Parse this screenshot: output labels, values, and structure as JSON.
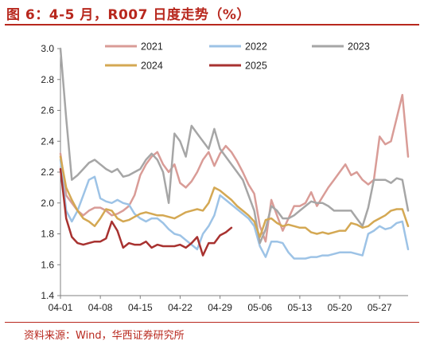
{
  "title": "图 6：4-5 月，R007 日度走势（%）",
  "source": "资料来源：Wind，华西证券研究所",
  "chart_data": {
    "type": "line",
    "x_tick_labels": [
      "04-01",
      "04-08",
      "04-15",
      "04-22",
      "04-29",
      "05-06",
      "05-13",
      "05-20",
      "05-27"
    ],
    "x_tick_positions": [
      1,
      8,
      15,
      22,
      29,
      36,
      43,
      50,
      57
    ],
    "xlim": [
      1,
      62
    ],
    "ylim": [
      1.4,
      3.0
    ],
    "y_ticks": [
      1.4,
      1.6,
      1.8,
      2.0,
      2.2,
      2.4,
      2.6,
      2.8,
      3.0
    ],
    "y_tick_labels": [
      "1.4",
      "1.6",
      "1.8",
      "2.0",
      "2.2",
      "2.4",
      "2.6",
      "2.8",
      "3.0"
    ],
    "legend_position": "top",
    "series": [
      {
        "name": "2021",
        "color": "#d99c97",
        "width": 2.5,
        "points": [
          [
            1,
            2.32
          ],
          [
            2,
            2.05
          ],
          [
            3,
            2.0
          ],
          [
            4,
            1.95
          ],
          [
            5,
            1.92
          ],
          [
            6,
            1.95
          ],
          [
            7,
            1.97
          ],
          [
            8,
            1.97
          ],
          [
            9,
            1.95
          ],
          [
            10,
            1.92
          ],
          [
            11,
            1.93
          ],
          [
            12,
            1.95
          ],
          [
            13,
            1.98
          ],
          [
            14,
            2.05
          ],
          [
            15,
            2.18
          ],
          [
            16,
            2.25
          ],
          [
            17,
            2.3
          ],
          [
            18,
            2.33
          ],
          [
            19,
            2.25
          ],
          [
            20,
            2.2
          ],
          [
            21,
            2.25
          ],
          [
            22,
            2.13
          ],
          [
            23,
            2.1
          ],
          [
            24,
            2.14
          ],
          [
            25,
            2.2
          ],
          [
            26,
            2.28
          ],
          [
            27,
            2.33
          ],
          [
            28,
            2.24
          ],
          [
            29,
            2.32
          ],
          [
            30,
            2.37
          ],
          [
            31,
            2.33
          ],
          [
            32,
            2.27
          ],
          [
            33,
            2.2
          ],
          [
            34,
            2.12
          ],
          [
            35,
            2.06
          ],
          [
            36,
            1.85
          ],
          [
            37,
            1.75
          ],
          [
            38,
            2.02
          ],
          [
            39,
            1.92
          ],
          [
            40,
            1.82
          ],
          [
            41,
            1.9
          ],
          [
            42,
            1.98
          ],
          [
            43,
            1.98
          ],
          [
            44,
            2.0
          ],
          [
            45,
            2.07
          ],
          [
            46,
            1.98
          ],
          [
            47,
            2.04
          ],
          [
            48,
            2.1
          ],
          [
            49,
            2.15
          ],
          [
            50,
            2.2
          ],
          [
            51,
            2.25
          ],
          [
            52,
            2.18
          ],
          [
            53,
            2.2
          ],
          [
            54,
            2.15
          ],
          [
            55,
            2.12
          ],
          [
            56,
            2.15
          ],
          [
            57,
            2.43
          ],
          [
            58,
            2.38
          ],
          [
            59,
            2.4
          ],
          [
            60,
            2.55
          ],
          [
            61,
            2.7
          ],
          [
            62,
            2.3
          ]
        ]
      },
      {
        "name": "2022",
        "color": "#9dc3e6",
        "width": 2.5,
        "points": [
          [
            1,
            2.28
          ],
          [
            2,
            1.95
          ],
          [
            3,
            1.88
          ],
          [
            4,
            1.95
          ],
          [
            5,
            2.05
          ],
          [
            6,
            2.15
          ],
          [
            7,
            2.17
          ],
          [
            8,
            2.03
          ],
          [
            9,
            2.01
          ],
          [
            10,
            2.0
          ],
          [
            11,
            2.02
          ],
          [
            12,
            2.0
          ],
          [
            13,
            1.99
          ],
          [
            14,
            1.93
          ],
          [
            15,
            1.9
          ],
          [
            16,
            1.88
          ],
          [
            17,
            1.9
          ],
          [
            18,
            1.9
          ],
          [
            19,
            1.87
          ],
          [
            20,
            1.83
          ],
          [
            21,
            1.8
          ],
          [
            22,
            1.79
          ],
          [
            23,
            1.76
          ],
          [
            24,
            1.73
          ],
          [
            25,
            1.7
          ],
          [
            26,
            1.8
          ],
          [
            27,
            1.85
          ],
          [
            28,
            1.92
          ],
          [
            29,
            2.05
          ],
          [
            30,
            2.02
          ],
          [
            31,
            1.99
          ],
          [
            32,
            1.96
          ],
          [
            33,
            1.93
          ],
          [
            34,
            1.9
          ],
          [
            35,
            1.85
          ],
          [
            36,
            1.72
          ],
          [
            37,
            1.65
          ],
          [
            38,
            1.75
          ],
          [
            39,
            1.75
          ],
          [
            40,
            1.74
          ],
          [
            41,
            1.68
          ],
          [
            42,
            1.64
          ],
          [
            43,
            1.64
          ],
          [
            44,
            1.64
          ],
          [
            45,
            1.65
          ],
          [
            46,
            1.65
          ],
          [
            47,
            1.66
          ],
          [
            48,
            1.66
          ],
          [
            49,
            1.67
          ],
          [
            50,
            1.68
          ],
          [
            51,
            1.68
          ],
          [
            52,
            1.68
          ],
          [
            53,
            1.67
          ],
          [
            54,
            1.66
          ],
          [
            55,
            1.8
          ],
          [
            56,
            1.82
          ],
          [
            57,
            1.85
          ],
          [
            58,
            1.83
          ],
          [
            59,
            1.84
          ],
          [
            60,
            1.87
          ],
          [
            61,
            1.88
          ],
          [
            62,
            1.7
          ]
        ]
      },
      {
        "name": "2023",
        "color": "#a6a6a6",
        "width": 2.5,
        "points": [
          [
            1,
            3.0
          ],
          [
            2,
            2.55
          ],
          [
            3,
            2.15
          ],
          [
            4,
            2.18
          ],
          [
            5,
            2.22
          ],
          [
            6,
            2.26
          ],
          [
            7,
            2.28
          ],
          [
            8,
            2.25
          ],
          [
            9,
            2.22
          ],
          [
            10,
            2.2
          ],
          [
            11,
            2.22
          ],
          [
            12,
            2.17
          ],
          [
            13,
            2.18
          ],
          [
            14,
            2.2
          ],
          [
            15,
            2.22
          ],
          [
            16,
            2.28
          ],
          [
            17,
            2.32
          ],
          [
            18,
            2.28
          ],
          [
            19,
            2.2
          ],
          [
            20,
            2.0
          ],
          [
            21,
            2.45
          ],
          [
            22,
            2.4
          ],
          [
            23,
            2.3
          ],
          [
            24,
            2.5
          ],
          [
            25,
            2.45
          ],
          [
            26,
            2.4
          ],
          [
            27,
            2.35
          ],
          [
            28,
            2.48
          ],
          [
            29,
            2.35
          ],
          [
            30,
            2.3
          ],
          [
            31,
            2.25
          ],
          [
            32,
            2.2
          ],
          [
            33,
            2.15
          ],
          [
            34,
            2.05
          ],
          [
            35,
            1.95
          ],
          [
            36,
            1.74
          ],
          [
            37,
            1.83
          ],
          [
            38,
            1.98
          ],
          [
            39,
            1.95
          ],
          [
            40,
            1.9
          ],
          [
            41,
            1.9
          ],
          [
            42,
            1.92
          ],
          [
            43,
            1.95
          ],
          [
            44,
            1.98
          ],
          [
            45,
            2.01
          ],
          [
            46,
            2.0
          ],
          [
            47,
            2.0
          ],
          [
            48,
            1.98
          ],
          [
            49,
            1.95
          ],
          [
            50,
            1.95
          ],
          [
            51,
            1.95
          ],
          [
            52,
            1.95
          ],
          [
            53,
            1.9
          ],
          [
            54,
            1.85
          ],
          [
            55,
            1.97
          ],
          [
            56,
            2.15
          ],
          [
            57,
            2.15
          ],
          [
            58,
            2.15
          ],
          [
            59,
            2.13
          ],
          [
            60,
            2.16
          ],
          [
            61,
            2.15
          ],
          [
            62,
            1.95
          ]
        ]
      },
      {
        "name": "2024",
        "color": "#d4a853",
        "width": 2.5,
        "points": [
          [
            1,
            2.3
          ],
          [
            2,
            2.1
          ],
          [
            3,
            2.02
          ],
          [
            4,
            1.95
          ],
          [
            5,
            1.9
          ],
          [
            6,
            1.88
          ],
          [
            7,
            1.85
          ],
          [
            8,
            1.9
          ],
          [
            9,
            1.96
          ],
          [
            10,
            1.95
          ],
          [
            11,
            1.9
          ],
          [
            12,
            1.88
          ],
          [
            13,
            1.89
          ],
          [
            14,
            1.91
          ],
          [
            15,
            1.93
          ],
          [
            16,
            1.94
          ],
          [
            17,
            1.93
          ],
          [
            18,
            1.92
          ],
          [
            19,
            1.92
          ],
          [
            20,
            1.91
          ],
          [
            21,
            1.9
          ],
          [
            22,
            1.92
          ],
          [
            23,
            1.94
          ],
          [
            24,
            1.95
          ],
          [
            25,
            1.96
          ],
          [
            26,
            1.95
          ],
          [
            27,
            2.0
          ],
          [
            28,
            2.1
          ],
          [
            29,
            2.08
          ],
          [
            30,
            2.05
          ],
          [
            31,
            2.02
          ],
          [
            32,
            1.98
          ],
          [
            33,
            1.95
          ],
          [
            34,
            1.92
          ],
          [
            35,
            1.88
          ],
          [
            36,
            1.78
          ],
          [
            37,
            1.89
          ],
          [
            38,
            1.9
          ],
          [
            39,
            1.87
          ],
          [
            40,
            1.85
          ],
          [
            41,
            1.86
          ],
          [
            42,
            1.85
          ],
          [
            43,
            1.84
          ],
          [
            44,
            1.84
          ],
          [
            45,
            1.81
          ],
          [
            46,
            1.8
          ],
          [
            47,
            1.81
          ],
          [
            48,
            1.8
          ],
          [
            49,
            1.81
          ],
          [
            50,
            1.82
          ],
          [
            51,
            1.82
          ],
          [
            52,
            1.87
          ],
          [
            53,
            1.86
          ],
          [
            54,
            1.84
          ],
          [
            55,
            1.85
          ],
          [
            56,
            1.88
          ],
          [
            57,
            1.9
          ],
          [
            58,
            1.92
          ],
          [
            59,
            1.95
          ],
          [
            60,
            1.96
          ],
          [
            61,
            1.96
          ],
          [
            62,
            1.85
          ]
        ]
      },
      {
        "name": "2025",
        "color": "#a83230",
        "width": 2.5,
        "points": [
          [
            1,
            2.22
          ],
          [
            2,
            1.9
          ],
          [
            3,
            1.78
          ],
          [
            4,
            1.74
          ],
          [
            5,
            1.73
          ],
          [
            6,
            1.74
          ],
          [
            7,
            1.75
          ],
          [
            8,
            1.75
          ],
          [
            9,
            1.77
          ],
          [
            10,
            1.88
          ],
          [
            11,
            1.82
          ],
          [
            12,
            1.71
          ],
          [
            13,
            1.74
          ],
          [
            14,
            1.73
          ],
          [
            15,
            1.73
          ],
          [
            16,
            1.75
          ],
          [
            17,
            1.71
          ],
          [
            18,
            1.73
          ],
          [
            19,
            1.72
          ],
          [
            20,
            1.72
          ],
          [
            21,
            1.72
          ],
          [
            22,
            1.73
          ],
          [
            23,
            1.71
          ],
          [
            24,
            1.74
          ],
          [
            25,
            1.78
          ],
          [
            26,
            1.66
          ],
          [
            27,
            1.74
          ],
          [
            28,
            1.74
          ],
          [
            29,
            1.79
          ],
          [
            30,
            1.81
          ],
          [
            31,
            1.84
          ]
        ]
      }
    ]
  }
}
